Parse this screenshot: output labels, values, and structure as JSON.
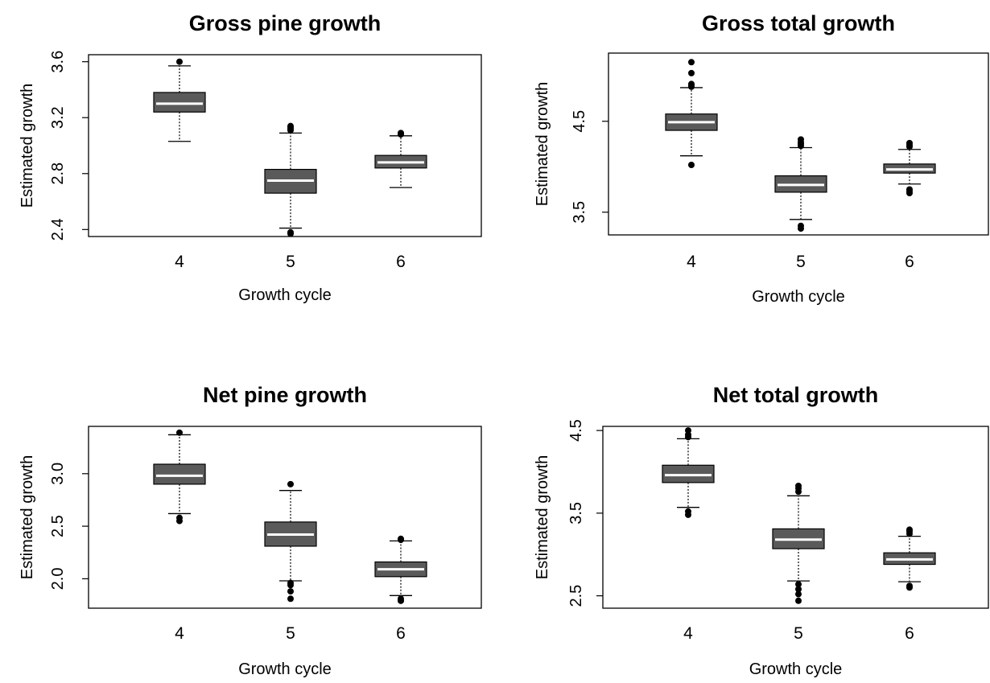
{
  "chart_data": [
    {
      "type": "boxplot",
      "title": "Gross pine growth",
      "xlabel": "Growth cycle",
      "ylabel": "Estimated growth",
      "categories": [
        "4",
        "5",
        "6"
      ],
      "yticks": [
        "2.4",
        "2.8",
        "3.2",
        "3.6"
      ],
      "ylim": [
        2.35,
        3.65
      ],
      "boxes": [
        {
          "category": "4",
          "whisker_low": 3.03,
          "q1": 3.24,
          "median": 3.3,
          "q3": 3.38,
          "whisker_high": 3.57,
          "outliers": [
            3.6
          ]
        },
        {
          "category": "5",
          "whisker_low": 2.41,
          "q1": 2.66,
          "median": 2.75,
          "q3": 2.83,
          "whisker_high": 3.09,
          "outliers": [
            3.11,
            3.12,
            3.13,
            3.14,
            2.38,
            2.37
          ]
        },
        {
          "category": "6",
          "whisker_low": 2.7,
          "q1": 2.84,
          "median": 2.88,
          "q3": 2.93,
          "whisker_high": 3.07,
          "outliers": [
            3.08,
            3.09
          ]
        }
      ]
    },
    {
      "type": "boxplot",
      "title": "Gross total growth",
      "xlabel": "Growth cycle",
      "ylabel": "Estimated growth",
      "categories": [
        "4",
        "5",
        "6"
      ],
      "yticks": [
        "3.5",
        "4.5"
      ],
      "ylim": [
        3.25,
        5.25
      ],
      "boxes": [
        {
          "category": "4",
          "whisker_low": 4.12,
          "q1": 4.4,
          "median": 4.49,
          "q3": 4.58,
          "whisker_high": 4.87,
          "outliers": [
            4.02,
            4.88,
            4.9,
            4.91,
            5.03,
            5.15
          ]
        },
        {
          "category": "5",
          "whisker_low": 3.42,
          "q1": 3.72,
          "median": 3.8,
          "q3": 3.9,
          "whisker_high": 4.21,
          "outliers": [
            4.23,
            4.25,
            4.27,
            4.3,
            3.35,
            3.32
          ]
        },
        {
          "category": "6",
          "whisker_low": 3.81,
          "q1": 3.93,
          "median": 3.97,
          "q3": 4.03,
          "whisker_high": 4.19,
          "outliers": [
            4.22,
            4.24,
            4.26,
            3.75,
            3.73,
            3.71
          ]
        }
      ]
    },
    {
      "type": "boxplot",
      "title": "Net pine growth",
      "xlabel": "Growth cycle",
      "ylabel": "Estimated growth",
      "categories": [
        "4",
        "5",
        "6"
      ],
      "yticks": [
        "2.0",
        "2.5",
        "3.0"
      ],
      "ylim": [
        1.72,
        3.45
      ],
      "boxes": [
        {
          "category": "4",
          "whisker_low": 2.62,
          "q1": 2.9,
          "median": 2.98,
          "q3": 3.09,
          "whisker_high": 3.37,
          "outliers": [
            3.39,
            2.58,
            2.55
          ]
        },
        {
          "category": "5",
          "whisker_low": 1.98,
          "q1": 2.31,
          "median": 2.42,
          "q3": 2.54,
          "whisker_high": 2.84,
          "outliers": [
            2.9,
            1.96,
            1.94,
            1.88,
            1.81
          ]
        },
        {
          "category": "6",
          "whisker_low": 1.84,
          "q1": 2.02,
          "median": 2.09,
          "q3": 2.16,
          "whisker_high": 2.36,
          "outliers": [
            2.37,
            2.38,
            1.81,
            1.79
          ]
        }
      ]
    },
    {
      "type": "boxplot",
      "title": "Net total growth",
      "xlabel": "Growth cycle",
      "ylabel": "Estimated growth",
      "categories": [
        "4",
        "5",
        "6"
      ],
      "yticks": [
        "2.5",
        "3.5",
        "4.5"
      ],
      "ylim": [
        2.35,
        4.55
      ],
      "boxes": [
        {
          "category": "4",
          "whisker_low": 3.57,
          "q1": 3.87,
          "median": 3.96,
          "q3": 4.08,
          "whisker_high": 4.4,
          "outliers": [
            4.42,
            4.45,
            4.5,
            3.52,
            3.48
          ]
        },
        {
          "category": "5",
          "whisker_low": 2.68,
          "q1": 3.07,
          "median": 3.18,
          "q3": 3.31,
          "whisker_high": 3.71,
          "outliers": [
            3.76,
            3.8,
            3.83,
            2.64,
            2.58,
            2.52,
            2.44
          ]
        },
        {
          "category": "6",
          "whisker_low": 2.67,
          "q1": 2.88,
          "median": 2.94,
          "q3": 3.02,
          "whisker_high": 3.22,
          "outliers": [
            3.25,
            3.28,
            3.3,
            2.62,
            2.6
          ]
        }
      ]
    }
  ],
  "colors": {
    "box_fill": "#5a5a5a",
    "median_line": "#ffffff",
    "ink": "#000000"
  }
}
